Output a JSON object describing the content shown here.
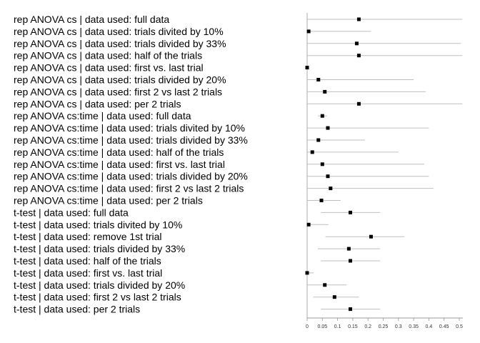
{
  "chart_data": {
    "type": "scatter",
    "subtype": "forest-plot-with-intervals",
    "title": "",
    "xlabel": "",
    "ylabel": "",
    "xlim": [
      0,
      0.5
    ],
    "x_ticks": [
      "0",
      "0.05",
      "0.1",
      "0.15",
      "0.2",
      "0.25",
      "0.3",
      "0.35",
      "0.4",
      "0.45",
      "0.5"
    ],
    "grid": false,
    "rows": [
      {
        "label": "rep ANOVA cs | data used: full data",
        "point": 0.17,
        "lo": 0.0,
        "hi": 0.51
      },
      {
        "label": "rep ANOVA cs | data used: trials divited by 10%",
        "point": 0.005,
        "lo": 0.0,
        "hi": 0.21
      },
      {
        "label": "rep ANOVA cs | data used: trials divided by 33%",
        "point": 0.163,
        "lo": 0.0,
        "hi": 0.505
      },
      {
        "label": "rep ANOVA cs | data used: half of the trials",
        "point": 0.17,
        "lo": 0.0,
        "hi": 0.51
      },
      {
        "label": "rep ANOVA cs | data used: first vs. last trial",
        "point": 0.0,
        "lo": 0.0,
        "hi": 0.0
      },
      {
        "label": "rep ANOVA cs | data used: trials divided by 20%",
        "point": 0.037,
        "lo": 0.0,
        "hi": 0.35
      },
      {
        "label": "rep ANOVA cs | data used: first 2 vs last 2 trials",
        "point": 0.058,
        "lo": 0.0,
        "hi": 0.39
      },
      {
        "label": "rep ANOVA cs | data used: per 2 trials",
        "point": 0.17,
        "lo": 0.0,
        "hi": 0.51
      },
      {
        "label": "rep ANOVA cs:time | data used: full data",
        "point": 0.05,
        "lo": 0.035,
        "hi": 0.065
      },
      {
        "label": "rep ANOVA cs:time | data used: trials divited by 10%",
        "point": 0.068,
        "lo": 0.0,
        "hi": 0.4
      },
      {
        "label": "rep ANOVA cs:time | data used: trials divided by 33%",
        "point": 0.037,
        "lo": 0.0,
        "hi": 0.19
      },
      {
        "label": "rep ANOVA cs:time | data used: half of the trials",
        "point": 0.017,
        "lo": 0.0,
        "hi": 0.3
      },
      {
        "label": "rep ANOVA cs:time | data used: first vs. last trial",
        "point": 0.05,
        "lo": 0.0,
        "hi": 0.385
      },
      {
        "label": "rep ANOVA cs:time | data used: trials divided by 20%",
        "point": 0.068,
        "lo": 0.0,
        "hi": 0.4
      },
      {
        "label": "rep ANOVA cs:time | data used: first 2 vs last 2 trials",
        "point": 0.077,
        "lo": 0.0,
        "hi": 0.415
      },
      {
        "label": "rep ANOVA cs:time | data used: per 2 trials",
        "point": 0.047,
        "lo": 0.0,
        "hi": 0.11
      },
      {
        "label": "t-test | data used: full data",
        "point": 0.142,
        "lo": 0.045,
        "hi": 0.24
      },
      {
        "label": "t-test | data used: trials divited by 10%",
        "point": 0.005,
        "lo": 0.0,
        "hi": 0.07
      },
      {
        "label": "t-test | data used: remove 1st trial",
        "point": 0.21,
        "lo": 0.06,
        "hi": 0.32
      },
      {
        "label": "t-test | data used: trials divided by 33%",
        "point": 0.137,
        "lo": 0.035,
        "hi": 0.24
      },
      {
        "label": "t-test | data used: half of the trials",
        "point": 0.142,
        "lo": 0.045,
        "hi": 0.24
      },
      {
        "label": "t-test | data used: first vs. last trial",
        "point": 0.0,
        "lo": 0.0,
        "hi": 0.022
      },
      {
        "label": "t-test | data used: trials divided by 20%",
        "point": 0.058,
        "lo": 0.0,
        "hi": 0.13
      },
      {
        "label": "t-test | data used: first 2 vs last 2 trials",
        "point": 0.09,
        "lo": 0.02,
        "hi": 0.17
      },
      {
        "label": "t-test | data used: per 2 trials",
        "point": 0.142,
        "lo": 0.045,
        "hi": 0.24
      }
    ],
    "colors": {
      "point": "#000000",
      "interval": "#bfbfbf",
      "axis": "#999999",
      "label": "#000000"
    }
  }
}
